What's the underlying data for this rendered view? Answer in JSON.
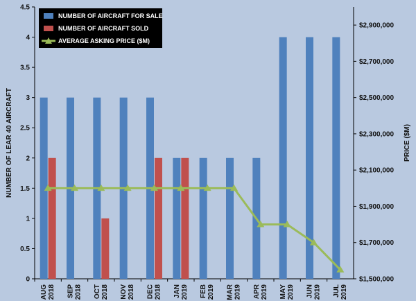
{
  "chart_data": {
    "type": "bar",
    "categories": [
      [
        "AUG",
        "2018"
      ],
      [
        "SEP",
        "2018"
      ],
      [
        "OCT",
        "2018"
      ],
      [
        "NOV",
        "2018"
      ],
      [
        "DEC",
        "2018"
      ],
      [
        "JAN",
        "2019"
      ],
      [
        "FEB",
        "2019"
      ],
      [
        "MAR",
        "2019"
      ],
      [
        "APR",
        "2019"
      ],
      [
        "MAY",
        "2019"
      ],
      [
        "JUN",
        "2019"
      ],
      [
        "JUL",
        "2019"
      ]
    ],
    "series": [
      {
        "name": "NUMBER OF AIRCRAFT FOR SALE",
        "kind": "bar",
        "axis": "left",
        "color": "#4f81bd",
        "values": [
          3,
          3,
          3,
          3,
          3,
          2,
          2,
          2,
          2,
          4,
          4,
          4
        ]
      },
      {
        "name": "NUMBER OF AIRCRAFT SOLD",
        "kind": "bar",
        "axis": "left",
        "color": "#c0504d",
        "values": [
          2,
          0,
          1,
          0,
          2,
          2,
          0,
          0,
          0,
          0,
          0,
          0
        ]
      },
      {
        "name": "AVERAGE ASKING PRICE ($M)",
        "kind": "line",
        "axis": "right",
        "color": "#9bbb59",
        "values": [
          2000000,
          2000000,
          2000000,
          2000000,
          2000000,
          2000000,
          2000000,
          2000000,
          1800000,
          1800000,
          1700000,
          1550000
        ]
      }
    ],
    "ylabel": "NUMBER OF LEAR 40 AIRCRAFT",
    "y2label": "PRICE ($M)",
    "ylim": [
      0,
      4.5
    ],
    "y2lim": [
      1500000,
      3000000
    ],
    "yticks": [
      "0",
      "0.5",
      "1",
      "1.5",
      "2",
      "2.5",
      "3",
      "3.5",
      "4",
      "4.5"
    ],
    "y2ticks": [
      "$1,500,000",
      "$1,700,000",
      "$1,900,000",
      "$2,100,000",
      "$2,300,000",
      "$2,500,000",
      "$2,700,000",
      "$2,900,000"
    ],
    "legend_position": "top-left",
    "grid": false,
    "background": "#b9c9e0"
  }
}
